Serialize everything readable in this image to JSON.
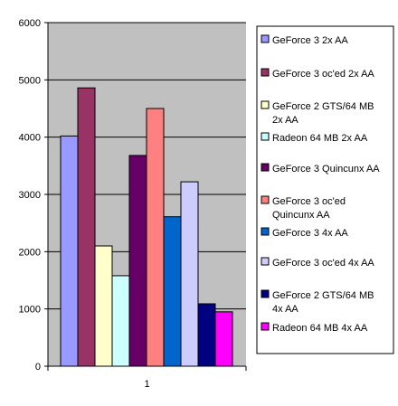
{
  "chart_data": {
    "type": "bar",
    "categories": [
      "1"
    ],
    "ylim": [
      0,
      6000
    ],
    "yticks": [
      0,
      1000,
      2000,
      3000,
      4000,
      5000,
      6000
    ],
    "grid": true,
    "plot_background": "#c0c0c0",
    "legend_position": "right",
    "series": [
      {
        "name": "GeForce 3 2x AA",
        "value": 4020,
        "color": "#9999ff"
      },
      {
        "name": "GeForce 3 oc'ed 2x AA",
        "value": 4860,
        "color": "#993366"
      },
      {
        "name": "GeForce 2 GTS/64 MB 2x AA",
        "value": 2100,
        "color": "#ffffcc"
      },
      {
        "name": "Radeon 64 MB 2x AA",
        "value": 1580,
        "color": "#ccffff"
      },
      {
        "name": "GeForce 3 Quincunx AA",
        "value": 3680,
        "color": "#660066"
      },
      {
        "name": "GeForce 3 oc'ed Quincunx AA",
        "value": 4500,
        "color": "#ff8080"
      },
      {
        "name": "GeForce 3 4x AA",
        "value": 2610,
        "color": "#0066cc"
      },
      {
        "name": "GeForce 3 oc'ed 4x AA",
        "value": 3220,
        "color": "#ccccff"
      },
      {
        "name": "GeForce 2 GTS/64 MB 4x AA",
        "value": 1090,
        "color": "#000080"
      },
      {
        "name": "Radeon 64 MB 4x AA",
        "value": 950,
        "color": "#ff00ff"
      }
    ]
  }
}
